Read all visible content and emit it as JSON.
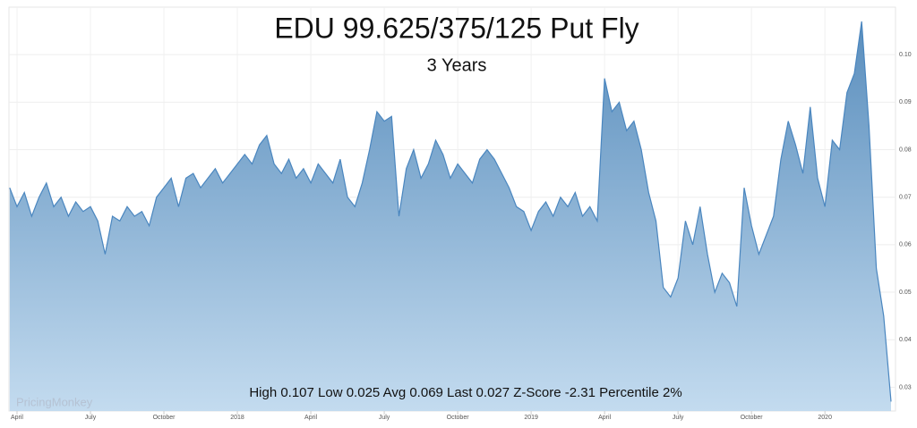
{
  "chart_data": {
    "type": "area",
    "title": "EDU 99.625/375/125 Put Fly",
    "subtitle": "3 Years",
    "annotation": "High 0.107 Low 0.025 Avg 0.069 Last 0.027 Z-Score -2.31 Percentile 2%",
    "watermark": "PricingMonkey",
    "categories": [
      null,
      "April",
      null,
      null,
      null,
      null,
      null,
      null,
      null,
      null,
      null,
      "July",
      null,
      null,
      null,
      null,
      null,
      null,
      null,
      null,
      null,
      "October",
      null,
      null,
      null,
      null,
      null,
      null,
      null,
      null,
      null,
      "2018",
      null,
      null,
      null,
      null,
      null,
      null,
      null,
      null,
      null,
      "April",
      null,
      null,
      null,
      null,
      null,
      null,
      null,
      null,
      null,
      "July",
      null,
      null,
      null,
      null,
      null,
      null,
      null,
      null,
      null,
      "October",
      null,
      null,
      null,
      null,
      null,
      null,
      null,
      null,
      null,
      "2019",
      null,
      null,
      null,
      null,
      null,
      null,
      null,
      null,
      null,
      "April",
      null,
      null,
      null,
      null,
      null,
      null,
      null,
      null,
      null,
      "July",
      null,
      null,
      null,
      null,
      null,
      null,
      null,
      null,
      null,
      "October",
      null,
      null,
      null,
      null,
      null,
      null,
      null,
      null,
      null,
      "2020",
      null,
      null,
      null,
      null,
      null,
      null,
      null,
      null,
      null
    ],
    "values": [
      0.072,
      0.068,
      0.071,
      0.066,
      0.07,
      0.073,
      0.068,
      0.07,
      0.066,
      0.069,
      0.067,
      0.068,
      0.065,
      0.058,
      0.066,
      0.065,
      0.068,
      0.066,
      0.067,
      0.064,
      0.07,
      0.072,
      0.074,
      0.068,
      0.074,
      0.075,
      0.072,
      0.074,
      0.076,
      0.073,
      0.075,
      0.077,
      0.079,
      0.077,
      0.081,
      0.083,
      0.077,
      0.075,
      0.078,
      0.074,
      0.076,
      0.073,
      0.077,
      0.075,
      0.073,
      0.078,
      0.07,
      0.068,
      0.073,
      0.08,
      0.088,
      0.086,
      0.087,
      0.066,
      0.076,
      0.08,
      0.074,
      0.077,
      0.082,
      0.079,
      0.074,
      0.077,
      0.075,
      0.073,
      0.078,
      0.08,
      0.078,
      0.075,
      0.072,
      0.068,
      0.067,
      0.063,
      0.067,
      0.069,
      0.066,
      0.07,
      0.068,
      0.071,
      0.066,
      0.068,
      0.065,
      0.095,
      0.088,
      0.09,
      0.084,
      0.086,
      0.08,
      0.071,
      0.065,
      0.051,
      0.049,
      0.053,
      0.065,
      0.06,
      0.068,
      0.058,
      0.05,
      0.054,
      0.052,
      0.047,
      0.072,
      0.064,
      0.058,
      0.062,
      0.066,
      0.078,
      0.086,
      0.081,
      0.075,
      0.089,
      0.074,
      0.068,
      0.082,
      0.08,
      0.092,
      0.096,
      0.107,
      0.085,
      0.055,
      0.045,
      0.027
    ],
    "color": "#4a86bf",
    "ylim": [
      0.025,
      0.11
    ],
    "yticks": [
      0.03,
      0.04,
      0.05,
      0.06,
      0.07,
      0.08,
      0.09,
      {
        "value": 0.1,
        "label": "0.10"
      }
    ],
    "grid": true
  }
}
